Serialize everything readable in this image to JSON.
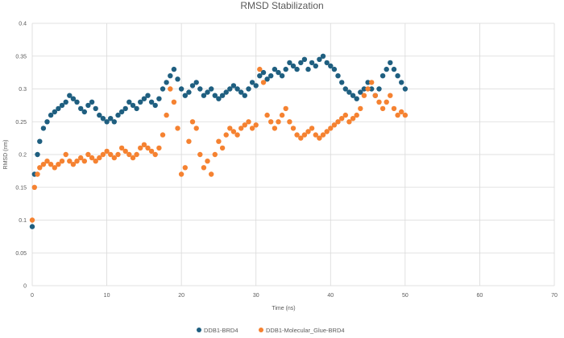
{
  "chart_data": {
    "type": "scatter",
    "title": "RMSD Stabilization",
    "xlabel": "Time (ns)",
    "ylabel": "RMSD (nm)",
    "xlim": [
      0,
      70
    ],
    "ylim": [
      0,
      0.4
    ],
    "x_ticks": [
      "0",
      "10",
      "20",
      "30",
      "40",
      "50",
      "60",
      "70"
    ],
    "y_ticks": [
      "0",
      "0.05",
      "0.1",
      "0.15",
      "0.2",
      "0.25",
      "0.3",
      "0.35",
      "0.4"
    ],
    "grid": true,
    "legend_position": "bottom",
    "series": [
      {
        "name": "DDB1-BRD4",
        "color": "#1f5f80",
        "x": [
          0,
          0.3,
          0.7,
          1,
          1.5,
          2,
          2.5,
          3,
          3.5,
          4,
          4.5,
          5,
          5.5,
          6,
          6.5,
          7,
          7.5,
          8,
          8.5,
          9,
          9.5,
          10,
          10.5,
          11,
          11.5,
          12,
          12.5,
          13,
          13.5,
          14,
          14.5,
          15,
          15.5,
          16,
          16.5,
          17,
          17.5,
          18,
          18.5,
          19,
          19.5,
          20,
          20.5,
          21,
          21.5,
          22,
          22.5,
          23,
          23.5,
          24,
          24.5,
          25,
          25.5,
          26,
          26.5,
          27,
          27.5,
          28,
          28.5,
          29,
          29.5,
          30,
          30.5,
          31,
          31.5,
          32,
          32.5,
          33,
          33.5,
          34,
          34.5,
          35,
          35.5,
          36,
          36.5,
          37,
          37.5,
          38,
          38.5,
          39,
          39.5,
          40,
          40.5,
          41,
          41.5,
          42,
          42.5,
          43,
          43.5,
          44,
          44.5,
          45,
          45.5,
          46,
          46.5,
          47,
          47.5,
          48,
          48.5,
          49,
          49.5,
          50
        ],
        "y": [
          0.09,
          0.17,
          0.2,
          0.22,
          0.24,
          0.25,
          0.26,
          0.265,
          0.27,
          0.275,
          0.28,
          0.29,
          0.285,
          0.28,
          0.27,
          0.265,
          0.275,
          0.28,
          0.27,
          0.26,
          0.255,
          0.25,
          0.255,
          0.25,
          0.26,
          0.265,
          0.27,
          0.28,
          0.275,
          0.27,
          0.28,
          0.285,
          0.29,
          0.28,
          0.275,
          0.285,
          0.3,
          0.31,
          0.32,
          0.33,
          0.315,
          0.3,
          0.29,
          0.295,
          0.305,
          0.31,
          0.3,
          0.29,
          0.295,
          0.3,
          0.29,
          0.285,
          0.29,
          0.295,
          0.3,
          0.305,
          0.3,
          0.295,
          0.29,
          0.3,
          0.31,
          0.305,
          0.32,
          0.325,
          0.315,
          0.32,
          0.33,
          0.325,
          0.32,
          0.33,
          0.34,
          0.335,
          0.33,
          0.34,
          0.345,
          0.33,
          0.34,
          0.335,
          0.345,
          0.35,
          0.34,
          0.335,
          0.33,
          0.32,
          0.31,
          0.3,
          0.295,
          0.29,
          0.285,
          0.295,
          0.3,
          0.31,
          0.3,
          0.29,
          0.3,
          0.32,
          0.33,
          0.34,
          0.33,
          0.32,
          0.31,
          0.3
        ]
      },
      {
        "name": "DDB1-Molecular_Glue-BRD4",
        "color": "#f58231",
        "x": [
          0,
          0.3,
          0.7,
          1,
          1.5,
          2,
          2.5,
          3,
          3.5,
          4,
          4.5,
          5,
          5.5,
          6,
          6.5,
          7,
          7.5,
          8,
          8.5,
          9,
          9.5,
          10,
          10.5,
          11,
          11.5,
          12,
          12.5,
          13,
          13.5,
          14,
          14.5,
          15,
          15.5,
          16,
          16.5,
          17,
          17.5,
          18,
          18.5,
          19,
          19.5,
          20,
          20.5,
          21,
          21.5,
          22,
          22.5,
          23,
          23.5,
          24,
          24.5,
          25,
          25.5,
          26,
          26.5,
          27,
          27.5,
          28,
          28.5,
          29,
          29.5,
          30,
          30.5,
          31,
          31.5,
          32,
          32.5,
          33,
          33.5,
          34,
          34.5,
          35,
          35.5,
          36,
          36.5,
          37,
          37.5,
          38,
          38.5,
          39,
          39.5,
          40,
          40.5,
          41,
          41.5,
          42,
          42.5,
          43,
          43.5,
          44,
          44.5,
          45,
          45.5,
          46,
          46.5,
          47,
          47.5,
          48,
          48.5,
          49,
          49.5,
          50
        ],
        "y": [
          0.1,
          0.15,
          0.17,
          0.18,
          0.185,
          0.19,
          0.185,
          0.18,
          0.185,
          0.19,
          0.2,
          0.19,
          0.185,
          0.19,
          0.195,
          0.19,
          0.2,
          0.195,
          0.19,
          0.195,
          0.2,
          0.205,
          0.2,
          0.195,
          0.2,
          0.21,
          0.205,
          0.2,
          0.195,
          0.2,
          0.21,
          0.215,
          0.21,
          0.205,
          0.2,
          0.21,
          0.23,
          0.26,
          0.3,
          0.28,
          0.24,
          0.17,
          0.18,
          0.22,
          0.25,
          0.24,
          0.2,
          0.18,
          0.19,
          0.17,
          0.2,
          0.22,
          0.21,
          0.23,
          0.24,
          0.235,
          0.23,
          0.24,
          0.245,
          0.25,
          0.24,
          0.245,
          0.33,
          0.31,
          0.26,
          0.25,
          0.24,
          0.25,
          0.26,
          0.27,
          0.25,
          0.24,
          0.23,
          0.225,
          0.23,
          0.235,
          0.24,
          0.23,
          0.225,
          0.23,
          0.235,
          0.24,
          0.245,
          0.25,
          0.255,
          0.26,
          0.25,
          0.255,
          0.26,
          0.27,
          0.29,
          0.3,
          0.31,
          0.29,
          0.28,
          0.27,
          0.28,
          0.29,
          0.27,
          0.26,
          0.265,
          0.26
        ]
      }
    ]
  }
}
